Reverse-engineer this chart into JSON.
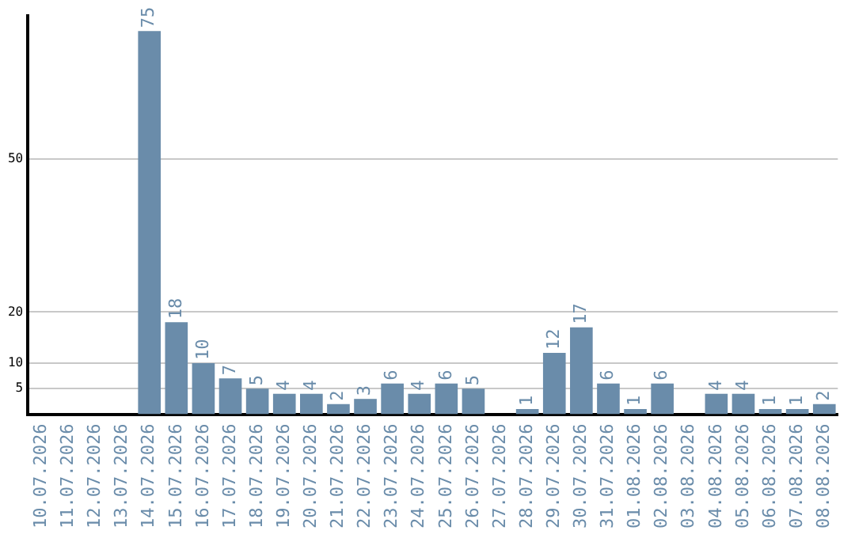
{
  "chart_data": {
    "type": "bar",
    "categories": [
      "10.07.2026",
      "11.07.2026",
      "12.07.2026",
      "13.07.2026",
      "14.07.2026",
      "15.07.2026",
      "16.07.2026",
      "17.07.2026",
      "18.07.2026",
      "19.07.2026",
      "20.07.2026",
      "21.07.2026",
      "22.07.2026",
      "23.07.2026",
      "24.07.2026",
      "25.07.2026",
      "26.07.2026",
      "27.07.2026",
      "28.07.2026",
      "29.07.2026",
      "30.07.2026",
      "31.07.2026",
      "01.08.2026",
      "02.08.2026",
      "03.08.2026",
      "04.08.2026",
      "05.08.2026",
      "06.08.2026",
      "07.08.2026",
      "08.08.2026"
    ],
    "values": [
      0,
      0,
      0,
      0,
      75,
      18,
      10,
      7,
      5,
      4,
      4,
      2,
      3,
      6,
      4,
      6,
      5,
      0,
      1,
      12,
      17,
      6,
      1,
      6,
      0,
      4,
      4,
      1,
      1,
      2
    ],
    "value_labels": [
      null,
      null,
      null,
      null,
      "75",
      "18",
      "10",
      "7",
      "5",
      "4",
      "4",
      "2",
      "3",
      "6",
      "4",
      "6",
      "5",
      null,
      "1",
      "12",
      "17",
      "6",
      "1",
      "6",
      null,
      "4",
      "4",
      "1",
      "1",
      "2"
    ],
    "color": "#6a8caa",
    "ylim": [
      0,
      78
    ],
    "yticks": [
      5,
      10,
      20,
      50
    ],
    "grid": "y",
    "legend": false
  }
}
